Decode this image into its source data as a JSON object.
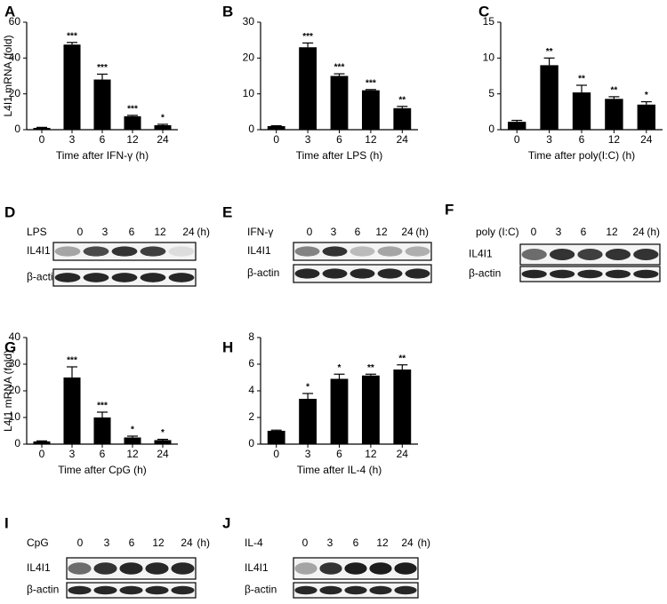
{
  "chart_data": [
    {
      "type": "bar",
      "panel": "A",
      "ylabel": "L4I1 mRNA (fold)",
      "xlabel": "Time after IFN-γ (h)",
      "categories": [
        "0",
        "3",
        "6",
        "12",
        "24"
      ],
      "values": [
        1,
        47.5,
        28,
        7.5,
        2.5
      ],
      "errors": [
        0.3,
        1.2,
        3,
        0.5,
        0.5
      ],
      "annotations": [
        null,
        "***",
        "***",
        "***",
        "*"
      ],
      "color": "#000000",
      "ylim": [
        0,
        60
      ],
      "yticks": [
        0,
        20,
        40,
        60
      ]
    },
    {
      "type": "bar",
      "panel": "B",
      "xlabel": "Time after LPS (h)",
      "categories": [
        "0",
        "3",
        "6",
        "12",
        "24"
      ],
      "values": [
        1,
        23,
        15,
        11,
        6
      ],
      "errors": [
        0.1,
        1.2,
        0.6,
        0.2,
        0.5
      ],
      "annotations": [
        null,
        "***",
        "***",
        "***",
        "**"
      ],
      "color": "#000000",
      "ylim": [
        0,
        30
      ],
      "yticks": [
        0,
        10,
        20,
        30
      ]
    },
    {
      "type": "bar",
      "panel": "C",
      "xlabel": "Time after poly(I:C) (h)",
      "categories": [
        "0",
        "3",
        "6",
        "12",
        "24"
      ],
      "values": [
        1.1,
        9,
        5.2,
        4.3,
        3.5
      ],
      "errors": [
        0.2,
        1,
        1,
        0.3,
        0.4
      ],
      "annotations": [
        null,
        "**",
        "**",
        "**",
        "*"
      ],
      "color": "#000000",
      "ylim": [
        0,
        15
      ],
      "yticks": [
        0,
        5,
        10,
        15
      ]
    },
    {
      "type": "bar",
      "panel": "G",
      "ylabel": "L4I1 mRNA (fold)",
      "xlabel": "Time after CpG (h)",
      "categories": [
        "0",
        "3",
        "6",
        "12",
        "24"
      ],
      "values": [
        1,
        25,
        10,
        2.5,
        1.5
      ],
      "errors": [
        0.2,
        4,
        2,
        0.5,
        0.3
      ],
      "annotations": [
        null,
        "***",
        "***",
        "*",
        "*"
      ],
      "color": "#000000",
      "ylim": [
        0,
        40
      ],
      "yticks": [
        0,
        10,
        20,
        30,
        40
      ]
    },
    {
      "type": "bar",
      "panel": "H",
      "xlabel": "Time after IL-4 (h)",
      "categories": [
        "0",
        "3",
        "6",
        "12",
        "24"
      ],
      "values": [
        1,
        3.4,
        4.9,
        5.15,
        5.6
      ],
      "errors": [
        0.05,
        0.4,
        0.35,
        0.1,
        0.35
      ],
      "annotations": [
        null,
        "*",
        "*",
        "**",
        "**"
      ],
      "color": "#000000",
      "ylim": [
        0,
        8
      ],
      "yticks": [
        0,
        2,
        4,
        6,
        8
      ]
    }
  ],
  "blots": [
    {
      "panel": "D",
      "treatment": "LPS",
      "times": [
        "0",
        "3",
        "6",
        "12",
        "24"
      ],
      "unit": "(h)",
      "rows": [
        "IL4I1",
        "β-actin"
      ]
    },
    {
      "panel": "E",
      "treatment": "IFN-γ",
      "times": [
        "0",
        "3",
        "6",
        "12",
        "24"
      ],
      "unit": "(h)",
      "rows": [
        "IL4I1",
        "β-actin"
      ]
    },
    {
      "panel": "F",
      "treatment": "poly (I:C)",
      "times": [
        "0",
        "3",
        "6",
        "12",
        "24"
      ],
      "unit": "(h)",
      "rows": [
        "IL4I1",
        "β-actin"
      ]
    },
    {
      "panel": "I",
      "treatment": "CpG",
      "times": [
        "0",
        "3",
        "6",
        "12",
        "24"
      ],
      "unit": "(h)",
      "rows": [
        "IL4I1",
        "β-actin"
      ]
    },
    {
      "panel": "J",
      "treatment": "IL-4",
      "times": [
        "0",
        "3",
        "6",
        "12",
        "24"
      ],
      "unit": "(h)",
      "rows": [
        "IL4I1",
        "β-actin"
      ]
    }
  ]
}
